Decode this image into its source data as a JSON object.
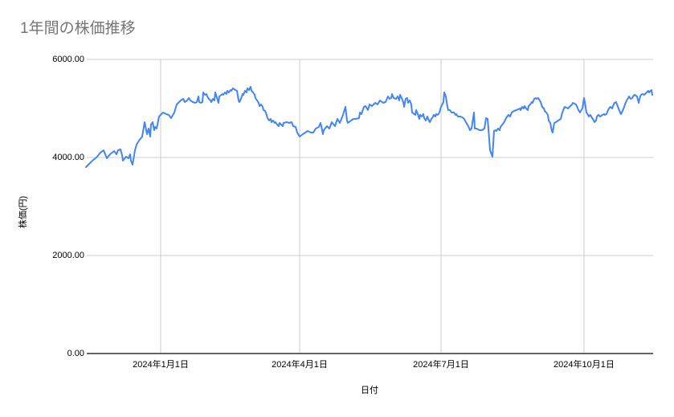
{
  "chart_data": {
    "type": "line",
    "title": "1年間の株価推移",
    "xlabel": "日付",
    "ylabel": "株価(円)",
    "ylim": [
      0,
      6000
    ],
    "grid": true,
    "legend_position": "none",
    "colors": {
      "line": "#4285f4",
      "grid": "#cccccc",
      "axis": "#333333",
      "title": "#757575",
      "tick_label": "#000000"
    },
    "y_ticks": [
      {
        "value": 0,
        "label": "0.00"
      },
      {
        "value": 2000,
        "label": "2000.00"
      },
      {
        "value": 4000,
        "label": "4000.00"
      },
      {
        "value": 6000,
        "label": "6000.00"
      }
    ],
    "x_ticks": [
      {
        "pos": 0.1319,
        "label": "2024年1月1日"
      },
      {
        "pos": 0.3773,
        "label": "2024年4月1日"
      },
      {
        "pos": 0.627,
        "label": "2024年7月1日"
      },
      {
        "pos": 0.8794,
        "label": "2024年10月1日"
      }
    ],
    "points": [
      [
        0.0,
        3803
      ],
      [
        0.0043,
        3852
      ],
      [
        0.0113,
        3934
      ],
      [
        0.0184,
        4000
      ],
      [
        0.0255,
        4098
      ],
      [
        0.0312,
        4148
      ],
      [
        0.0369,
        3984
      ],
      [
        0.0426,
        4066
      ],
      [
        0.0496,
        4131
      ],
      [
        0.0539,
        4066
      ],
      [
        0.0567,
        4148
      ],
      [
        0.061,
        4164
      ],
      [
        0.0638,
        4049
      ],
      [
        0.0652,
        3934
      ],
      [
        0.0709,
        4016
      ],
      [
        0.0752,
        3984
      ],
      [
        0.078,
        4066
      ],
      [
        0.0794,
        3934
      ],
      [
        0.0823,
        3852
      ],
      [
        0.0851,
        4049
      ],
      [
        0.0865,
        4148
      ],
      [
        0.0894,
        4262
      ],
      [
        0.0936,
        4344
      ],
      [
        0.0993,
        4426
      ],
      [
        0.1035,
        4721
      ],
      [
        0.1064,
        4557
      ],
      [
        0.1078,
        4475
      ],
      [
        0.1106,
        4590
      ],
      [
        0.1135,
        4426
      ],
      [
        0.1149,
        4672
      ],
      [
        0.1177,
        4721
      ],
      [
        0.1206,
        4557
      ],
      [
        0.122,
        4623
      ],
      [
        0.1248,
        4590
      ],
      [
        0.1291,
        4836
      ],
      [
        0.1362,
        4918
      ],
      [
        0.1418,
        4885
      ],
      [
        0.1461,
        4869
      ],
      [
        0.1504,
        4803
      ],
      [
        0.156,
        4918
      ],
      [
        0.1603,
        5082
      ],
      [
        0.1674,
        5164
      ],
      [
        0.1716,
        5197
      ],
      [
        0.1745,
        5131
      ],
      [
        0.1787,
        5164
      ],
      [
        0.1816,
        5213
      ],
      [
        0.1844,
        5164
      ],
      [
        0.1887,
        5131
      ],
      [
        0.1929,
        5115
      ],
      [
        0.1957,
        5131
      ],
      [
        0.1986,
        5246
      ],
      [
        0.2,
        5131
      ],
      [
        0.2028,
        5115
      ],
      [
        0.2057,
        5131
      ],
      [
        0.2071,
        5328
      ],
      [
        0.2099,
        5279
      ],
      [
        0.2128,
        5295
      ],
      [
        0.2142,
        5246
      ],
      [
        0.217,
        5197
      ],
      [
        0.2199,
        5164
      ],
      [
        0.2213,
        5131
      ],
      [
        0.2241,
        5197
      ],
      [
        0.227,
        5164
      ],
      [
        0.2284,
        5328
      ],
      [
        0.234,
        5115
      ],
      [
        0.2355,
        5246
      ],
      [
        0.2411,
        5295
      ],
      [
        0.2426,
        5279
      ],
      [
        0.2454,
        5328
      ],
      [
        0.2482,
        5295
      ],
      [
        0.2496,
        5361
      ],
      [
        0.2525,
        5328
      ],
      [
        0.2553,
        5377
      ],
      [
        0.2567,
        5361
      ],
      [
        0.2596,
        5410
      ],
      [
        0.2638,
        5377
      ],
      [
        0.2667,
        5361
      ],
      [
        0.2695,
        5164
      ],
      [
        0.2709,
        5131
      ],
      [
        0.2738,
        5197
      ],
      [
        0.2766,
        5295
      ],
      [
        0.278,
        5279
      ],
      [
        0.2809,
        5361
      ],
      [
        0.2837,
        5328
      ],
      [
        0.2851,
        5410
      ],
      [
        0.2879,
        5377
      ],
      [
        0.2908,
        5443
      ],
      [
        0.2922,
        5361
      ],
      [
        0.295,
        5328
      ],
      [
        0.2979,
        5279
      ],
      [
        0.2993,
        5213
      ],
      [
        0.3021,
        5164
      ],
      [
        0.305,
        5115
      ],
      [
        0.3064,
        5049
      ],
      [
        0.3092,
        5082
      ],
      [
        0.3121,
        5033
      ],
      [
        0.3135,
        4967
      ],
      [
        0.3163,
        4951
      ],
      [
        0.3191,
        4869
      ],
      [
        0.3206,
        4803
      ],
      [
        0.3234,
        4754
      ],
      [
        0.3262,
        4787
      ],
      [
        0.3277,
        4721
      ],
      [
        0.3305,
        4754
      ],
      [
        0.3333,
        4705
      ],
      [
        0.3348,
        4721
      ],
      [
        0.3376,
        4672
      ],
      [
        0.3404,
        4639
      ],
      [
        0.3418,
        4705
      ],
      [
        0.3447,
        4672
      ],
      [
        0.3475,
        4639
      ],
      [
        0.3489,
        4705
      ],
      [
        0.3546,
        4721
      ],
      [
        0.3589,
        4705
      ],
      [
        0.3631,
        4721
      ],
      [
        0.366,
        4639
      ],
      [
        0.3702,
        4623
      ],
      [
        0.373,
        4508
      ],
      [
        0.3773,
        4426
      ],
      [
        0.383,
        4475
      ],
      [
        0.3872,
        4508
      ],
      [
        0.3915,
        4541
      ],
      [
        0.3972,
        4508
      ],
      [
        0.4014,
        4508
      ],
      [
        0.4057,
        4590
      ],
      [
        0.4113,
        4623
      ],
      [
        0.4142,
        4705
      ],
      [
        0.4156,
        4639
      ],
      [
        0.4184,
        4475
      ],
      [
        0.4199,
        4557
      ],
      [
        0.4255,
        4639
      ],
      [
        0.4298,
        4590
      ],
      [
        0.434,
        4721
      ],
      [
        0.4397,
        4639
      ],
      [
        0.444,
        4787
      ],
      [
        0.4482,
        4705
      ],
      [
        0.4539,
        4869
      ],
      [
        0.4582,
        5033
      ],
      [
        0.461,
        4754
      ],
      [
        0.4624,
        4705
      ],
      [
        0.4681,
        4754
      ],
      [
        0.4723,
        4787
      ],
      [
        0.4766,
        4787
      ],
      [
        0.4823,
        4803
      ],
      [
        0.4837,
        4918
      ],
      [
        0.4865,
        4885
      ],
      [
        0.4908,
        5033
      ],
      [
        0.4936,
        5049
      ],
      [
        0.4979,
        4967
      ],
      [
        0.5007,
        5082
      ],
      [
        0.505,
        5049
      ],
      [
        0.5106,
        5115
      ],
      [
        0.5149,
        5082
      ],
      [
        0.5191,
        5164
      ],
      [
        0.5248,
        5115
      ],
      [
        0.5291,
        5131
      ],
      [
        0.5333,
        5246
      ],
      [
        0.5362,
        5197
      ],
      [
        0.539,
        5213
      ],
      [
        0.5404,
        5295
      ],
      [
        0.5433,
        5213
      ],
      [
        0.5475,
        5197
      ],
      [
        0.5504,
        5246
      ],
      [
        0.5532,
        5164
      ],
      [
        0.5546,
        5279
      ],
      [
        0.5574,
        5213
      ],
      [
        0.5603,
        5131
      ],
      [
        0.5617,
        5033
      ],
      [
        0.5645,
        5197
      ],
      [
        0.5674,
        5213
      ],
      [
        0.5688,
        5115
      ],
      [
        0.5716,
        5164
      ],
      [
        0.5745,
        5082
      ],
      [
        0.5759,
        4918
      ],
      [
        0.5816,
        4869
      ],
      [
        0.583,
        4967
      ],
      [
        0.5858,
        4885
      ],
      [
        0.5887,
        4787
      ],
      [
        0.5901,
        4869
      ],
      [
        0.5929,
        4836
      ],
      [
        0.5957,
        4885
      ],
      [
        0.5972,
        4803
      ],
      [
        0.6,
        4754
      ],
      [
        0.6028,
        4836
      ],
      [
        0.6043,
        4787
      ],
      [
        0.6071,
        4721
      ],
      [
        0.6099,
        4787
      ],
      [
        0.6113,
        4803
      ],
      [
        0.6142,
        4869
      ],
      [
        0.617,
        4836
      ],
      [
        0.6184,
        4885
      ],
      [
        0.6213,
        4869
      ],
      [
        0.6241,
        4918
      ],
      [
        0.627,
        5033
      ],
      [
        0.6312,
        5131
      ],
      [
        0.6326,
        5328
      ],
      [
        0.6355,
        5246
      ],
      [
        0.6383,
        5033
      ],
      [
        0.6397,
        4967
      ],
      [
        0.6426,
        4967
      ],
      [
        0.6454,
        4918
      ],
      [
        0.6496,
        4918
      ],
      [
        0.6525,
        4869
      ],
      [
        0.6539,
        4885
      ],
      [
        0.6567,
        4836
      ],
      [
        0.661,
        4836
      ],
      [
        0.6667,
        4803
      ],
      [
        0.6709,
        4721
      ],
      [
        0.6752,
        4639
      ],
      [
        0.678,
        4557
      ],
      [
        0.6809,
        4590
      ],
      [
        0.6851,
        4918
      ],
      [
        0.6865,
        4590
      ],
      [
        0.6894,
        4590
      ],
      [
        0.695,
        4557
      ],
      [
        0.6993,
        4557
      ],
      [
        0.7035,
        4590
      ],
      [
        0.7064,
        4803
      ],
      [
        0.7092,
        4787
      ],
      [
        0.7106,
        4590
      ],
      [
        0.7135,
        4148
      ],
      [
        0.7177,
        4016
      ],
      [
        0.7206,
        4541
      ],
      [
        0.7234,
        4557
      ],
      [
        0.7248,
        4541
      ],
      [
        0.7277,
        4590
      ],
      [
        0.7305,
        4557
      ],
      [
        0.7319,
        4623
      ],
      [
        0.7376,
        4705
      ],
      [
        0.7418,
        4803
      ],
      [
        0.7461,
        4869
      ],
      [
        0.7489,
        4836
      ],
      [
        0.7518,
        4918
      ],
      [
        0.756,
        4951
      ],
      [
        0.7603,
        4967
      ],
      [
        0.766,
        5000
      ],
      [
        0.7674,
        4967
      ],
      [
        0.7702,
        5033
      ],
      [
        0.773,
        5000
      ],
      [
        0.7745,
        5049
      ],
      [
        0.7773,
        5000
      ],
      [
        0.7801,
        4967
      ],
      [
        0.7816,
        5049
      ],
      [
        0.7844,
        5082
      ],
      [
        0.7872,
        5131
      ],
      [
        0.7887,
        5115
      ],
      [
        0.7915,
        5197
      ],
      [
        0.7943,
        5213
      ],
      [
        0.7957,
        5197
      ],
      [
        0.7986,
        5213
      ],
      [
        0.8028,
        5131
      ],
      [
        0.8057,
        5033
      ],
      [
        0.8085,
        5000
      ],
      [
        0.8099,
        4951
      ],
      [
        0.8128,
        4918
      ],
      [
        0.8156,
        4869
      ],
      [
        0.817,
        4754
      ],
      [
        0.8199,
        4705
      ],
      [
        0.8227,
        4540
      ],
      [
        0.8241,
        4508
      ],
      [
        0.827,
        4705
      ],
      [
        0.8298,
        4721
      ],
      [
        0.834,
        4754
      ],
      [
        0.8383,
        4787
      ],
      [
        0.8411,
        4918
      ],
      [
        0.844,
        5000
      ],
      [
        0.8454,
        5033
      ],
      [
        0.8511,
        5000
      ],
      [
        0.8553,
        5049
      ],
      [
        0.8582,
        5082
      ],
      [
        0.8596,
        5115
      ],
      [
        0.8652,
        5082
      ],
      [
        0.8667,
        5049
      ],
      [
        0.8695,
        4967
      ],
      [
        0.8723,
        4918
      ],
      [
        0.8738,
        4951
      ],
      [
        0.8766,
        5000
      ],
      [
        0.8794,
        5213
      ],
      [
        0.8809,
        5131
      ],
      [
        0.8837,
        4918
      ],
      [
        0.8865,
        4869
      ],
      [
        0.8879,
        4836
      ],
      [
        0.8908,
        4869
      ],
      [
        0.8936,
        4803
      ],
      [
        0.895,
        4787
      ],
      [
        0.8979,
        4721
      ],
      [
        0.9007,
        4754
      ],
      [
        0.9021,
        4836
      ],
      [
        0.905,
        4869
      ],
      [
        0.9078,
        4836
      ],
      [
        0.9121,
        4869
      ],
      [
        0.9149,
        4885
      ],
      [
        0.9163,
        4869
      ],
      [
        0.9191,
        4885
      ],
      [
        0.922,
        4967
      ],
      [
        0.9234,
        5000
      ],
      [
        0.9262,
        5033
      ],
      [
        0.9291,
        5000
      ],
      [
        0.9305,
        5049
      ],
      [
        0.9333,
        5115
      ],
      [
        0.9362,
        5131
      ],
      [
        0.9376,
        5082
      ],
      [
        0.9404,
        5000
      ],
      [
        0.9433,
        4918
      ],
      [
        0.9447,
        4885
      ],
      [
        0.9475,
        4951
      ],
      [
        0.9504,
        5033
      ],
      [
        0.9518,
        5082
      ],
      [
        0.9546,
        5164
      ],
      [
        0.9574,
        5213
      ],
      [
        0.9589,
        5246
      ],
      [
        0.9617,
        5197
      ],
      [
        0.9645,
        5213
      ],
      [
        0.966,
        5246
      ],
      [
        0.9688,
        5279
      ],
      [
        0.973,
        5246
      ],
      [
        0.9759,
        5115
      ],
      [
        0.9787,
        5246
      ],
      [
        0.9801,
        5279
      ],
      [
        0.983,
        5295
      ],
      [
        0.9858,
        5279
      ],
      [
        0.9872,
        5295
      ],
      [
        0.9901,
        5328
      ],
      [
        0.9929,
        5361
      ],
      [
        0.9943,
        5328
      ],
      [
        0.9972,
        5361
      ],
      [
        0.9986,
        5377
      ],
      [
        1.0,
        5279
      ]
    ]
  }
}
